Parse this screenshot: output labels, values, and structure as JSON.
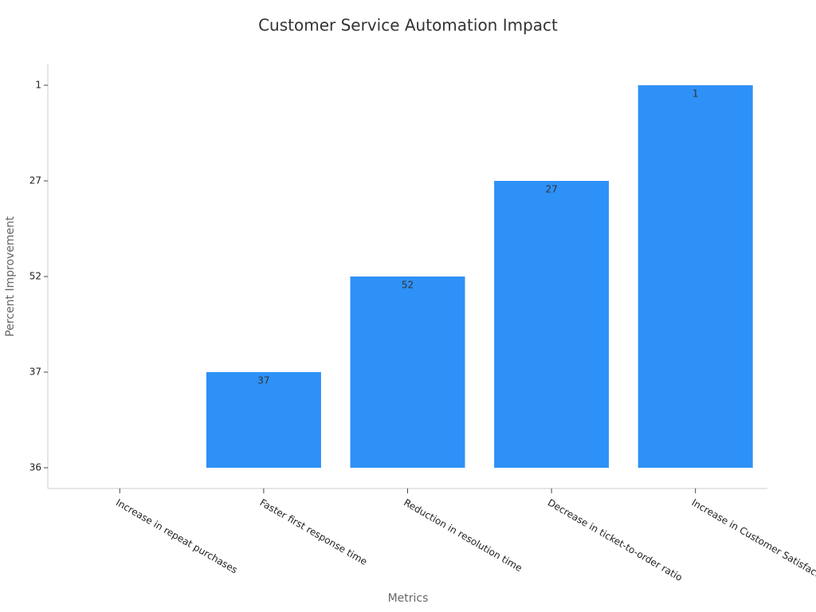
{
  "chart_data": {
    "type": "bar",
    "title": "Customer Service Automation Impact",
    "x_label": "Metrics",
    "y_label": "Percent Improvement",
    "categories": [
      "Increase in repeat purchases",
      "Faster first response time",
      "Reduction in resolution time",
      "Decrease in ticket-to-order ratio",
      "Increase in Customer Satisfaction (CSAT)"
    ],
    "values": [
      36,
      37,
      52,
      27,
      1
    ],
    "y_categories": [
      36,
      37,
      52,
      27,
      1
    ],
    "color": "#2e91f7"
  }
}
